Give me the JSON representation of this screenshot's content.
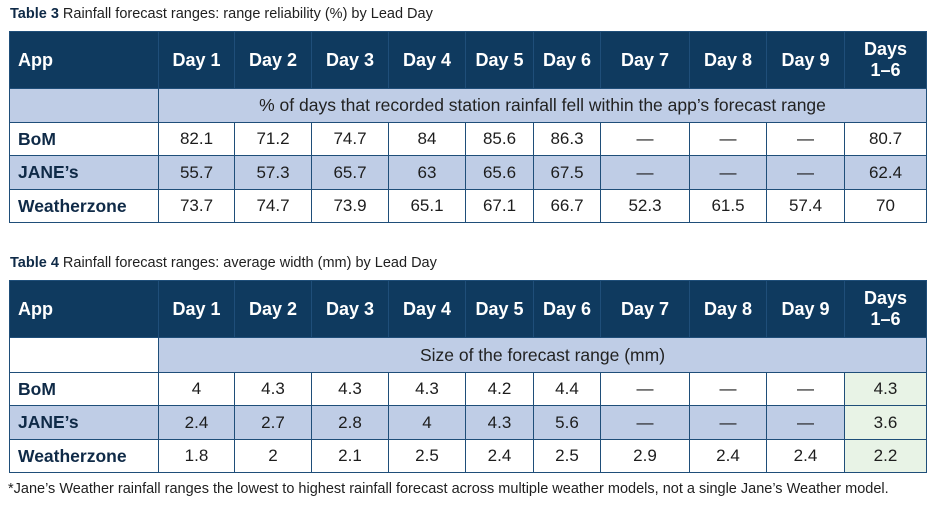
{
  "table3": {
    "caption_label": "Table 3",
    "caption_text": " Rainfall forecast ranges: range reliability (%) by Lead Day",
    "headers": [
      "App",
      "Day 1",
      "Day 2",
      "Day 3",
      "Day 4",
      "Day 5",
      "Day 6",
      "Day 7",
      "Day 8",
      "Day 9",
      "Days 1–6"
    ],
    "subheader": "% of days that recorded station rainfall fell within the app’s forecast range",
    "rows": [
      {
        "app": "BoM",
        "values": [
          "82.1",
          "71.2",
          "74.7",
          "84",
          "85.6",
          "86.3",
          "—",
          "—",
          "—",
          "80.7"
        ]
      },
      {
        "app": "JANE’s",
        "values": [
          "55.7",
          "57.3",
          "65.7",
          "63",
          "65.6",
          "67.5",
          "—",
          "—",
          "—",
          "62.4"
        ]
      },
      {
        "app": "Weatherzone",
        "values": [
          "73.7",
          "74.7",
          "73.9",
          "65.1",
          "67.1",
          "66.7",
          "52.3",
          "61.5",
          "57.4",
          "70"
        ]
      }
    ]
  },
  "table4": {
    "caption_label": "Table 4",
    "caption_text": " Rainfall forecast ranges: average width (mm) by Lead Day",
    "headers": [
      "App",
      "Day 1",
      "Day 2",
      "Day 3",
      "Day 4",
      "Day 5",
      "Day 6",
      "Day 7",
      "Day 8",
      "Day 9",
      "Days 1–6"
    ],
    "subheader": "Size of the forecast range (mm)",
    "rows": [
      {
        "app": "BoM",
        "values": [
          "4",
          "4.3",
          "4.3",
          "4.3",
          "4.2",
          "4.4",
          "—",
          "—",
          "—",
          "4.3"
        ]
      },
      {
        "app": "JANE’s",
        "values": [
          "2.4",
          "2.7",
          "2.8",
          "4",
          "4.3",
          "5.6",
          "—",
          "—",
          "—",
          "3.6"
        ]
      },
      {
        "app": "Weatherzone",
        "values": [
          "1.8",
          "2",
          "2.1",
          "2.5",
          "2.4",
          "2.5",
          "2.9",
          "2.4",
          "2.4",
          "2.2"
        ]
      }
    ]
  },
  "footnote": "*Jane’s Weather rainfall ranges the lowest to highest rainfall forecast across multiple weather models, not a single Jane’s Weather model.",
  "colors": {
    "header_bg": "#0f3a5f",
    "band_bg": "#bfcde6",
    "highlight_bg": "#e8f3e6"
  }
}
